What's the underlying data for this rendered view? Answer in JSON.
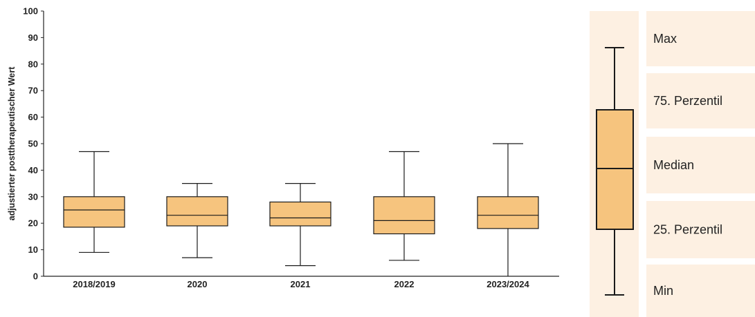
{
  "chart_data": {
    "type": "box",
    "ylabel": "adjustierter posttherapeutischer Wert",
    "xlabel": "",
    "ylim": [
      0,
      100
    ],
    "yticks": [
      0,
      10,
      20,
      30,
      40,
      50,
      60,
      70,
      80,
      90,
      100
    ],
    "categories": [
      "2018/2019",
      "2020",
      "2021",
      "2022",
      "2023/2024"
    ],
    "boxes": [
      {
        "min": 9,
        "q1": 18.5,
        "median": 25,
        "q3": 30,
        "max": 47
      },
      {
        "min": 7,
        "q1": 19,
        "median": 23,
        "q3": 30,
        "max": 35
      },
      {
        "min": 4,
        "q1": 19,
        "median": 22,
        "q3": 28,
        "max": 35
      },
      {
        "min": 6,
        "q1": 16,
        "median": 21,
        "q3": 30,
        "max": 47
      },
      {
        "min": 0,
        "q1": 18,
        "median": 23,
        "q3": 30,
        "max": 50
      }
    ],
    "grid": false,
    "colors": {
      "box_fill": "#f6c47e",
      "box_stroke": "#1a1a1a",
      "axis": "#222222",
      "legend_bg": "#fdf0e2"
    }
  },
  "legend": {
    "placement": "right",
    "labels": [
      "Max",
      "75. Perzentil",
      "Median",
      "25. Perzentil",
      "Min"
    ]
  }
}
